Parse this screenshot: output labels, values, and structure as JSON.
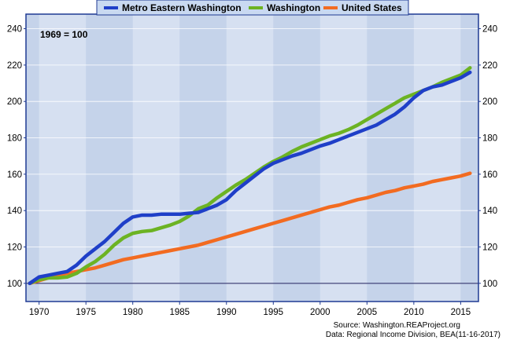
{
  "chart_data": {
    "type": "line",
    "annotation": "1969 = 100",
    "xlim": [
      1968.6,
      2016.9
    ],
    "ylim": [
      90,
      248
    ],
    "x_ticks": [
      1970,
      1975,
      1980,
      1985,
      1990,
      1995,
      2000,
      2005,
      2010,
      2015
    ],
    "y_ticks": [
      100,
      120,
      140,
      160,
      180,
      200,
      220,
      240
    ],
    "baseline": 100,
    "legend_position": "top-center",
    "grid": "alternating vertical bands",
    "colors": {
      "background": "#c5d3ea",
      "band": "#d6e0f1",
      "frame": "#1f3a93",
      "legend_bg": "#c9d9f1"
    },
    "x": [
      1969,
      1970,
      1971,
      1972,
      1973,
      1974,
      1975,
      1976,
      1977,
      1978,
      1979,
      1980,
      1981,
      1982,
      1983,
      1984,
      1985,
      1986,
      1987,
      1988,
      1989,
      1990,
      1991,
      1992,
      1993,
      1994,
      1995,
      1996,
      1997,
      1998,
      1999,
      2000,
      2001,
      2002,
      2003,
      2004,
      2005,
      2006,
      2007,
      2008,
      2009,
      2010,
      2011,
      2012,
      2013,
      2014,
      2015,
      2016
    ],
    "series": [
      {
        "name": "Metro Eastern Washington",
        "color": "#1f3fc8",
        "values": [
          100,
          103.5,
          104.5,
          105.5,
          106.5,
          110,
          115,
          119,
          123,
          128,
          133,
          136.5,
          137.5,
          137.5,
          138,
          138,
          138,
          138.5,
          139,
          141,
          143,
          146,
          151,
          155,
          159,
          163,
          166,
          168,
          170,
          171.5,
          173.5,
          175.5,
          177,
          179,
          181,
          183,
          185,
          187,
          190,
          193,
          197,
          202,
          206,
          208,
          209,
          211,
          213,
          216
        ]
      },
      {
        "name": "Washington",
        "color": "#6cb323",
        "values": [
          100,
          102,
          103,
          103,
          103.5,
          105.5,
          109,
          112,
          116,
          121,
          125,
          127.5,
          128.5,
          129,
          130.5,
          132,
          134,
          137,
          141,
          143,
          147,
          150.5,
          154,
          157,
          160.5,
          164,
          167,
          169.5,
          172.5,
          175,
          177,
          179,
          181,
          182.5,
          184.5,
          187,
          190,
          193,
          196,
          199,
          202,
          204,
          206,
          208,
          210.5,
          212.5,
          214.5,
          218.5
        ]
      },
      {
        "name": "United States",
        "color": "#f26b21",
        "values": [
          100,
          101.5,
          103,
          104.5,
          105.5,
          106.5,
          107.5,
          108.5,
          110,
          111.5,
          113,
          114,
          115,
          116,
          117,
          118,
          119,
          120,
          121,
          122.5,
          124,
          125.5,
          127,
          128.5,
          130,
          131.5,
          133,
          134.5,
          136,
          137.5,
          139,
          140.5,
          142,
          143,
          144.5,
          146,
          147,
          148.5,
          150,
          151,
          152.5,
          153.5,
          154.5,
          156,
          157,
          158,
          159,
          160.5
        ]
      }
    ],
    "source_lines": [
      "Source: Washington.REAProject.org",
      "Data: Regional Income Division, BEA(11-16-2017)"
    ]
  }
}
